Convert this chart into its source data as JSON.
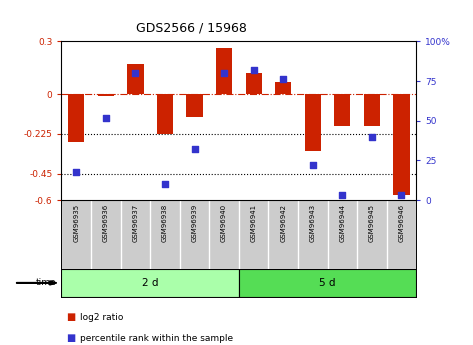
{
  "title": "GDS2566 / 15968",
  "samples": [
    "GSM96935",
    "GSM96936",
    "GSM96937",
    "GSM96938",
    "GSM96939",
    "GSM96940",
    "GSM96941",
    "GSM96942",
    "GSM96943",
    "GSM96944",
    "GSM96945",
    "GSM96946"
  ],
  "log2_ratio": [
    -0.27,
    -0.01,
    0.17,
    -0.225,
    -0.13,
    0.26,
    0.12,
    0.07,
    -0.32,
    -0.18,
    -0.18,
    -0.57
  ],
  "percentile": [
    18,
    52,
    80,
    10,
    32,
    80,
    82,
    76,
    22,
    3,
    40,
    3
  ],
  "groups": [
    {
      "label": "2 d",
      "start": 0,
      "end": 6
    },
    {
      "label": "5 d",
      "start": 6,
      "end": 12
    }
  ],
  "ylim_left": [
    -0.6,
    0.3
  ],
  "ylim_right": [
    0,
    100
  ],
  "yticks_left": [
    -0.6,
    -0.45,
    -0.225,
    0.0,
    0.3
  ],
  "yticks_right": [
    0,
    25,
    50,
    75,
    100
  ],
  "ytick_labels_left": [
    "-0.6",
    "-0.45",
    "-0.225",
    "0",
    "0.3"
  ],
  "ytick_labels_right": [
    "0",
    "25",
    "50",
    "75",
    "100%"
  ],
  "hlines": [
    -0.225,
    -0.45
  ],
  "bar_color": "#cc2200",
  "scatter_color": "#3333cc",
  "zero_line_color": "#cc2200",
  "group_color_1": "#aaffaa",
  "group_color_2": "#55dd55",
  "sample_box_color": "#cccccc",
  "background_color": "#ffffff",
  "legend_items": [
    {
      "label": "log2 ratio",
      "color": "#cc2200"
    },
    {
      "label": "percentile rank within the sample",
      "color": "#3333cc"
    }
  ]
}
